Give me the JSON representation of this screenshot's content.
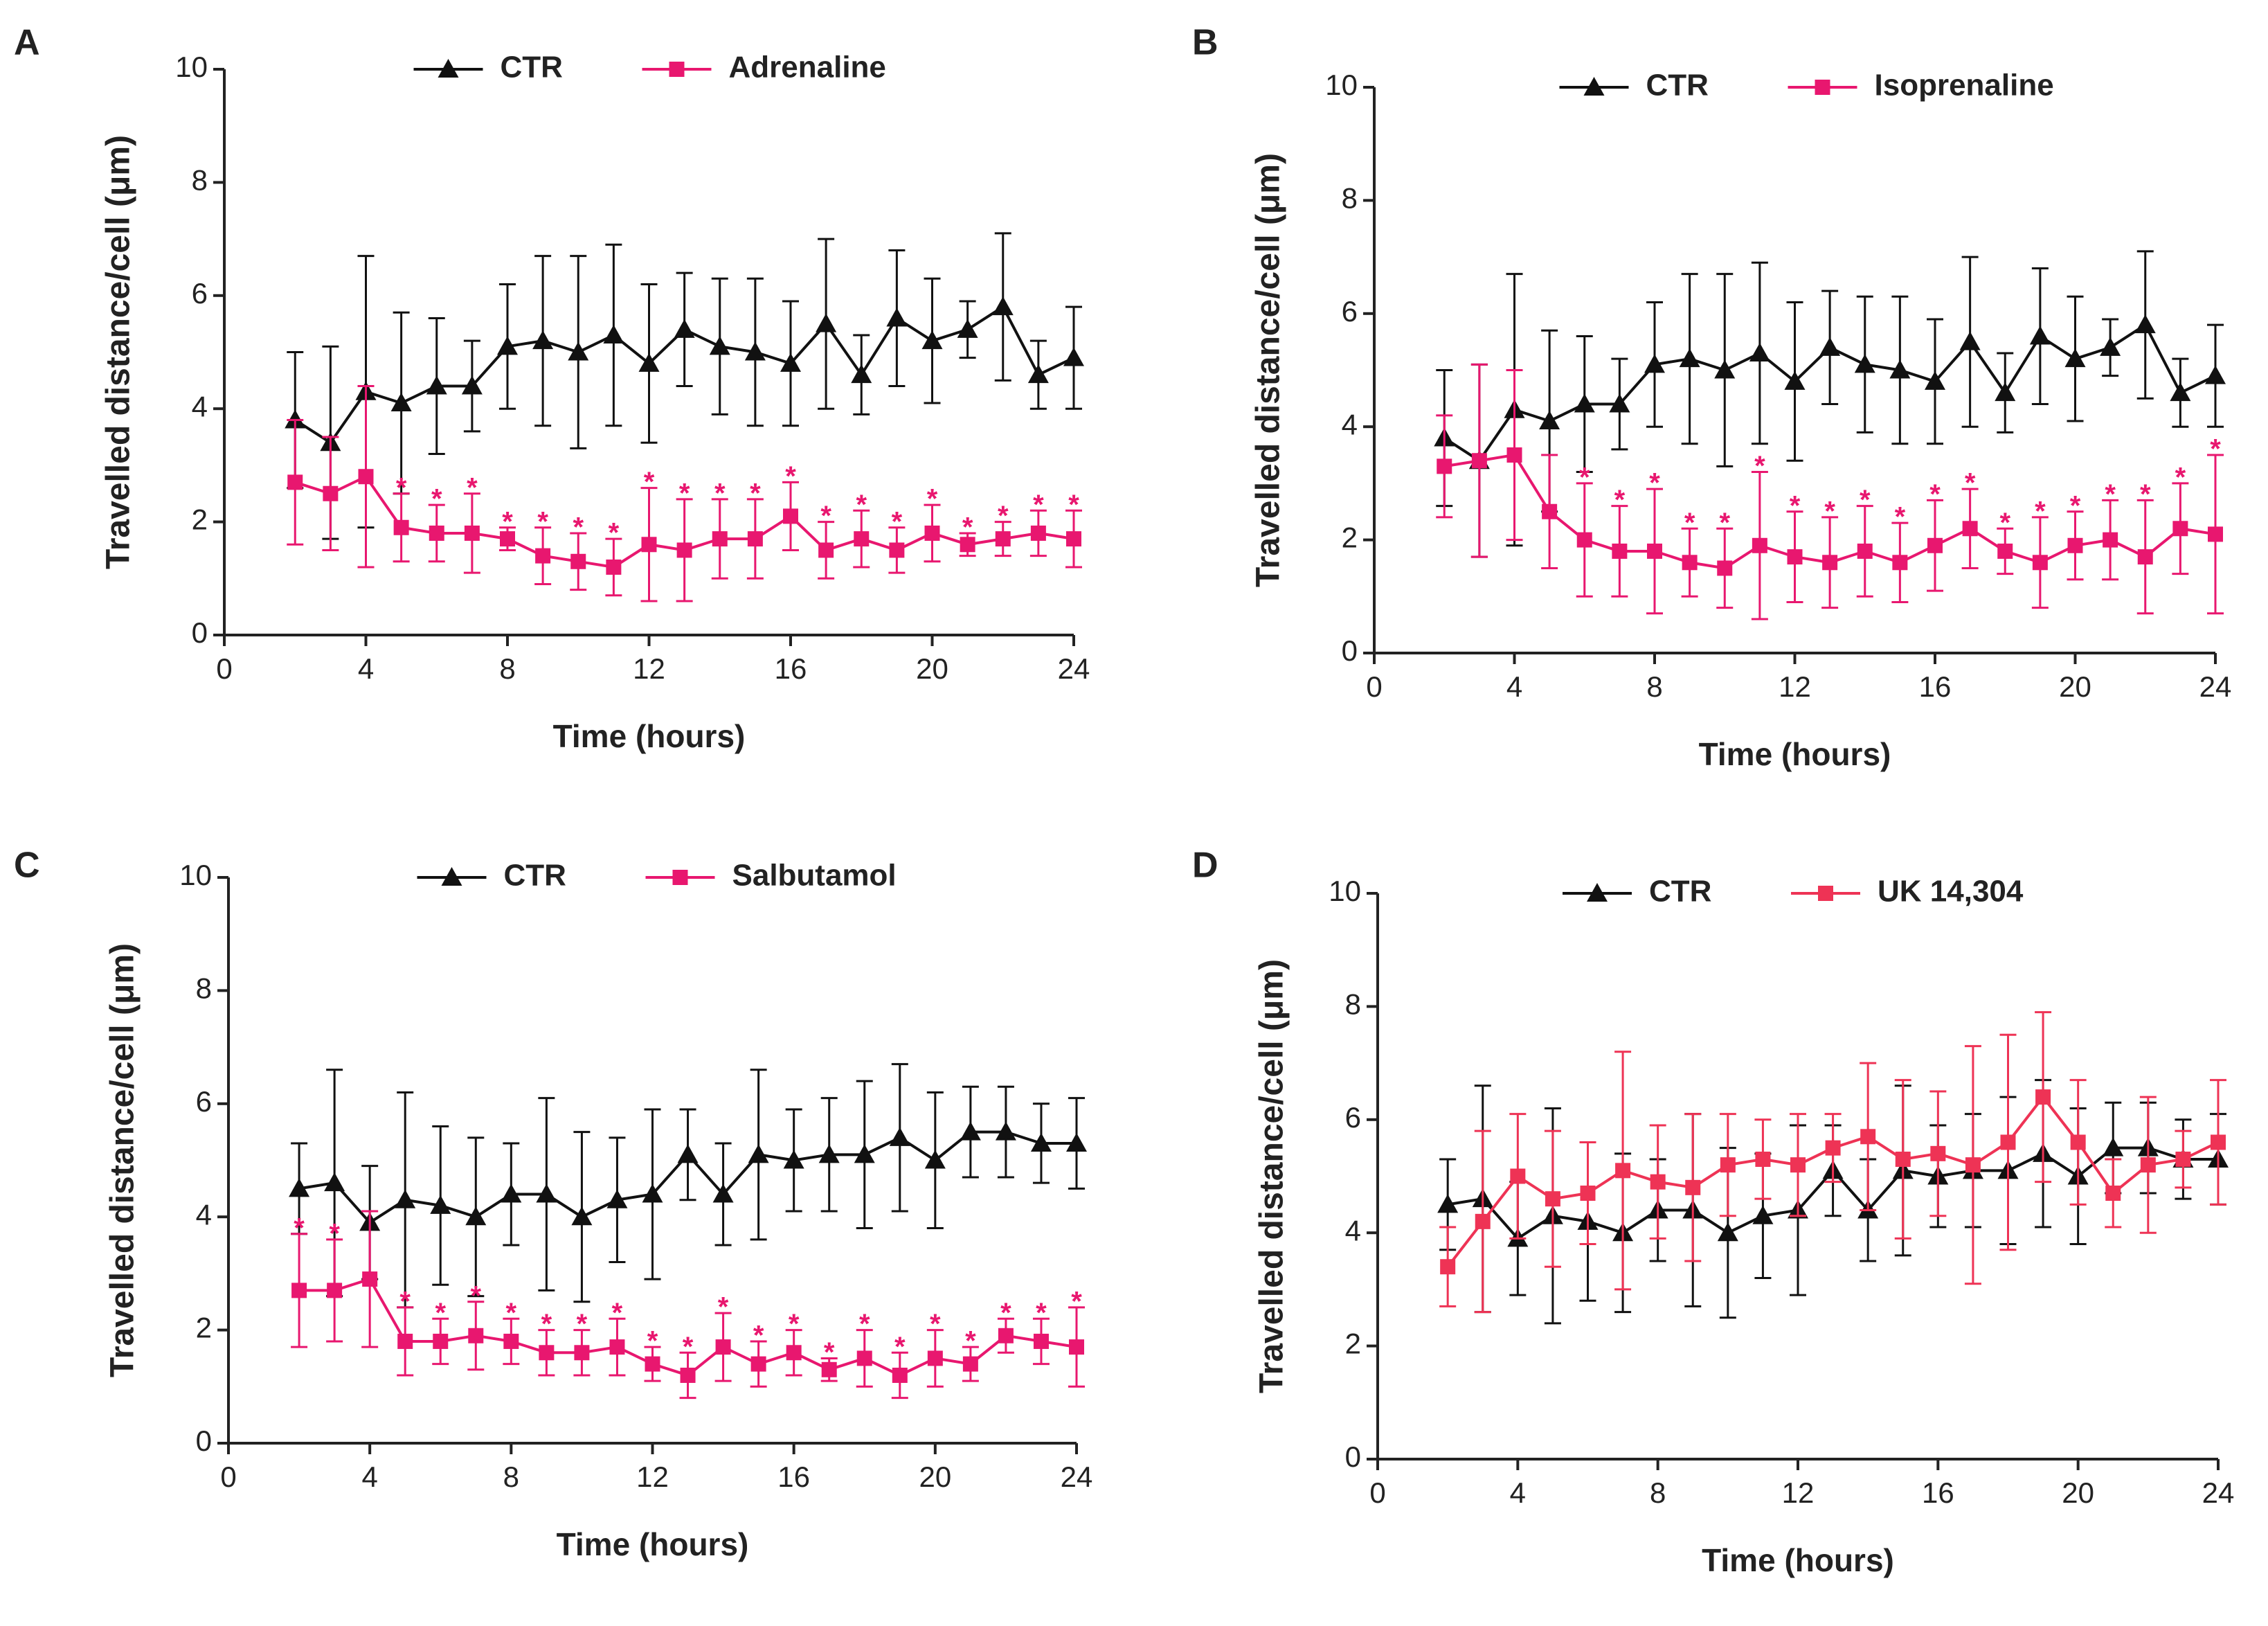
{
  "chart_data": [
    {
      "type": "line",
      "panel_label": "A",
      "xlabel": "Time (hours)",
      "ylabel": "Travelled distance/cell (μm)",
      "xlim": [
        0,
        24
      ],
      "xticks": [
        0,
        4,
        8,
        12,
        16,
        20,
        24
      ],
      "ylim": [
        0,
        10
      ],
      "yticks": [
        0,
        2,
        4,
        6,
        8,
        10
      ],
      "x": [
        2,
        3,
        4,
        5,
        6,
        7,
        8,
        9,
        10,
        11,
        12,
        13,
        14,
        15,
        16,
        17,
        18,
        19,
        20,
        21,
        22,
        23,
        24
      ],
      "series": [
        {
          "name": "CTR",
          "color": "#111111",
          "marker": "triangle",
          "values": [
            3.8,
            3.4,
            4.3,
            4.1,
            4.4,
            4.4,
            5.1,
            5.2,
            5.0,
            5.3,
            4.8,
            5.4,
            5.1,
            5.0,
            4.8,
            5.5,
            4.6,
            5.6,
            5.2,
            5.4,
            5.8,
            4.6,
            4.9
          ],
          "errors": [
            1.2,
            1.7,
            2.4,
            1.6,
            1.2,
            0.8,
            1.1,
            1.5,
            1.7,
            1.6,
            1.4,
            1.0,
            1.2,
            1.3,
            1.1,
            1.5,
            0.7,
            1.2,
            1.1,
            0.5,
            1.3,
            0.6,
            0.9
          ]
        },
        {
          "name": "Adrenaline",
          "color": "#e8176f",
          "marker": "square",
          "values": [
            2.7,
            2.5,
            2.8,
            1.9,
            1.8,
            1.8,
            1.7,
            1.4,
            1.3,
            1.2,
            1.6,
            1.5,
            1.7,
            1.7,
            2.1,
            1.5,
            1.7,
            1.5,
            1.8,
            1.6,
            1.7,
            1.8,
            1.7
          ],
          "errors": [
            1.1,
            1.0,
            1.6,
            0.6,
            0.5,
            0.7,
            0.2,
            0.5,
            0.5,
            0.5,
            1.0,
            0.9,
            0.7,
            0.7,
            0.6,
            0.5,
            0.5,
            0.4,
            0.5,
            0.2,
            0.3,
            0.4,
            0.5
          ]
        }
      ],
      "significance": {
        "text": "*",
        "x": [
          5,
          6,
          7,
          8,
          9,
          10,
          11,
          12,
          13,
          14,
          15,
          16,
          17,
          18,
          19,
          20,
          21,
          22,
          23,
          24
        ]
      }
    },
    {
      "type": "line",
      "panel_label": "B",
      "xlabel": "Time (hours)",
      "ylabel": "Travelled distance/cell (μm)",
      "xlim": [
        0,
        24
      ],
      "xticks": [
        0,
        4,
        8,
        12,
        16,
        20,
        24
      ],
      "ylim": [
        0,
        10
      ],
      "yticks": [
        0,
        2,
        4,
        6,
        8,
        10
      ],
      "x": [
        2,
        3,
        4,
        5,
        6,
        7,
        8,
        9,
        10,
        11,
        12,
        13,
        14,
        15,
        16,
        17,
        18,
        19,
        20,
        21,
        22,
        23,
        24
      ],
      "series": [
        {
          "name": "CTR",
          "color": "#111111",
          "marker": "triangle",
          "values": [
            3.8,
            3.4,
            4.3,
            4.1,
            4.4,
            4.4,
            5.1,
            5.2,
            5.0,
            5.3,
            4.8,
            5.4,
            5.1,
            5.0,
            4.8,
            5.5,
            4.6,
            5.6,
            5.2,
            5.4,
            5.8,
            4.6,
            4.9
          ],
          "errors": [
            1.2,
            1.7,
            2.4,
            1.6,
            1.2,
            0.8,
            1.1,
            1.5,
            1.7,
            1.6,
            1.4,
            1.0,
            1.2,
            1.3,
            1.1,
            1.5,
            0.7,
            1.2,
            1.1,
            0.5,
            1.3,
            0.6,
            0.9
          ]
        },
        {
          "name": "Isoprenaline",
          "color": "#e8176f",
          "marker": "square",
          "values": [
            3.3,
            3.4,
            3.5,
            2.5,
            2.0,
            1.8,
            1.8,
            1.6,
            1.5,
            1.9,
            1.7,
            1.6,
            1.8,
            1.6,
            1.9,
            2.2,
            1.8,
            1.6,
            1.9,
            2.0,
            1.7,
            2.2,
            2.1
          ],
          "errors": [
            0.9,
            1.7,
            1.5,
            1.0,
            1.0,
            0.8,
            1.1,
            0.6,
            0.7,
            1.3,
            0.8,
            0.8,
            0.8,
            0.7,
            0.8,
            0.7,
            0.4,
            0.8,
            0.6,
            0.7,
            1.0,
            0.8,
            1.4
          ]
        }
      ],
      "significance": {
        "text": "*",
        "x": [
          6,
          7,
          8,
          9,
          10,
          11,
          12,
          13,
          14,
          15,
          16,
          17,
          18,
          19,
          20,
          21,
          22,
          23,
          24
        ]
      }
    },
    {
      "type": "line",
      "panel_label": "C",
      "xlabel": "Time (hours)",
      "ylabel": "Travelled distance/cell (μm)",
      "xlim": [
        0,
        24
      ],
      "xticks": [
        0,
        4,
        8,
        12,
        16,
        20,
        24
      ],
      "ylim": [
        0,
        10
      ],
      "yticks": [
        0,
        2,
        4,
        6,
        8,
        10
      ],
      "x": [
        2,
        3,
        4,
        5,
        6,
        7,
        8,
        9,
        10,
        11,
        12,
        13,
        14,
        15,
        16,
        17,
        18,
        19,
        20,
        21,
        22,
        23,
        24
      ],
      "series": [
        {
          "name": "CTR",
          "color": "#111111",
          "marker": "triangle",
          "values": [
            4.5,
            4.6,
            3.9,
            4.3,
            4.2,
            4.0,
            4.4,
            4.4,
            4.0,
            4.3,
            4.4,
            5.1,
            4.4,
            5.1,
            5.0,
            5.1,
            5.1,
            5.4,
            5.0,
            5.5,
            5.5,
            5.3,
            5.3
          ],
          "errors": [
            0.8,
            2.0,
            1.0,
            1.9,
            1.4,
            1.4,
            0.9,
            1.7,
            1.5,
            1.1,
            1.5,
            0.8,
            0.9,
            1.5,
            0.9,
            1.0,
            1.3,
            1.3,
            1.2,
            0.8,
            0.8,
            0.7,
            0.8
          ]
        },
        {
          "name": "Salbutamol",
          "color": "#e8176f",
          "marker": "square",
          "values": [
            2.7,
            2.7,
            2.9,
            1.8,
            1.8,
            1.9,
            1.8,
            1.6,
            1.6,
            1.7,
            1.4,
            1.2,
            1.7,
            1.4,
            1.6,
            1.3,
            1.5,
            1.2,
            1.5,
            1.4,
            1.9,
            1.8,
            1.7
          ],
          "errors": [
            1.0,
            0.9,
            1.2,
            0.6,
            0.4,
            0.6,
            0.4,
            0.4,
            0.4,
            0.5,
            0.3,
            0.4,
            0.6,
            0.4,
            0.4,
            0.2,
            0.5,
            0.4,
            0.5,
            0.3,
            0.3,
            0.4,
            0.7
          ]
        }
      ],
      "significance": {
        "text": "*",
        "x": [
          2,
          3,
          5,
          6,
          7,
          8,
          9,
          10,
          11,
          12,
          13,
          14,
          15,
          16,
          17,
          18,
          19,
          20,
          21,
          22,
          23,
          24
        ]
      }
    },
    {
      "type": "line",
      "panel_label": "D",
      "xlabel": "Time (hours)",
      "ylabel": "Travelled distance/cell (μm)",
      "xlim": [
        0,
        24
      ],
      "xticks": [
        0,
        4,
        8,
        12,
        16,
        20,
        24
      ],
      "ylim": [
        0,
        10
      ],
      "yticks": [
        0,
        2,
        4,
        6,
        8,
        10
      ],
      "x": [
        2,
        3,
        4,
        5,
        6,
        7,
        8,
        9,
        10,
        11,
        12,
        13,
        14,
        15,
        16,
        17,
        18,
        19,
        20,
        21,
        22,
        23,
        24
      ],
      "series": [
        {
          "name": "CTR",
          "color": "#111111",
          "marker": "triangle",
          "values": [
            4.5,
            4.6,
            3.9,
            4.3,
            4.2,
            4.0,
            4.4,
            4.4,
            4.0,
            4.3,
            4.4,
            5.1,
            4.4,
            5.1,
            5.0,
            5.1,
            5.1,
            5.4,
            5.0,
            5.5,
            5.5,
            5.3,
            5.3
          ],
          "errors": [
            0.8,
            2.0,
            1.0,
            1.9,
            1.4,
            1.4,
            0.9,
            1.7,
            1.5,
            1.1,
            1.5,
            0.8,
            0.9,
            1.5,
            0.9,
            1.0,
            1.3,
            1.3,
            1.2,
            0.8,
            0.8,
            0.7,
            0.8
          ]
        },
        {
          "name": "UK 14,304",
          "color": "#ee3355",
          "marker": "square",
          "values": [
            3.4,
            4.2,
            5.0,
            4.6,
            4.7,
            5.1,
            4.9,
            4.8,
            5.2,
            5.3,
            5.2,
            5.5,
            5.7,
            5.3,
            5.4,
            5.2,
            5.6,
            6.4,
            5.6,
            4.7,
            5.2,
            5.3,
            5.6
          ],
          "errors": [
            0.7,
            1.6,
            1.1,
            1.2,
            0.9,
            2.1,
            1.0,
            1.3,
            0.9,
            0.7,
            0.9,
            0.6,
            1.3,
            1.4,
            1.1,
            2.1,
            1.9,
            1.5,
            1.1,
            0.6,
            1.2,
            0.5,
            1.1
          ]
        }
      ]
    }
  ]
}
